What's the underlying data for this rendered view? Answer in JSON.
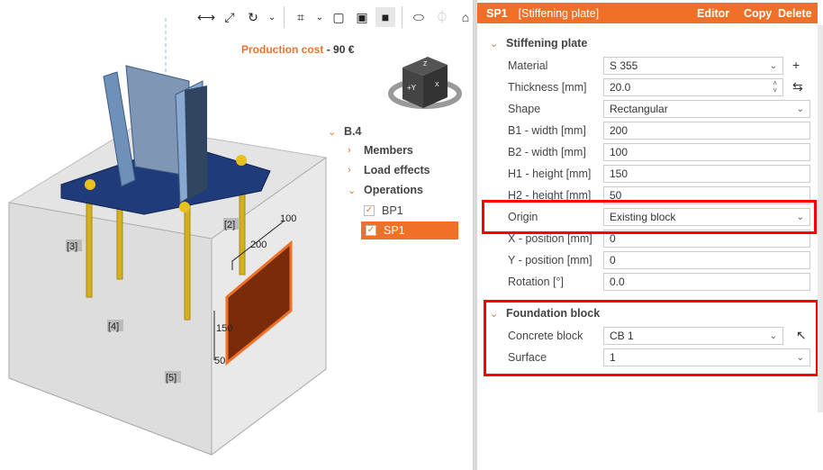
{
  "toolbar": {
    "items": [
      {
        "icon": "ruler-icon"
      },
      {
        "icon": "fit-icon"
      },
      {
        "icon": "rotate-icon"
      },
      {
        "icon": "chevron-down-icon"
      },
      {
        "icon": "crop-icon"
      },
      {
        "icon": "chevron-down-icon"
      },
      {
        "icon": "wireframe-icon"
      },
      {
        "icon": "transparent-icon"
      },
      {
        "icon": "solid-icon",
        "active": true
      },
      {
        "icon": "section-icon"
      },
      {
        "icon": "mirror-icon",
        "disabled": true
      },
      {
        "icon": "home-icon"
      }
    ]
  },
  "cost": {
    "label": "Production cost",
    "sep": "-",
    "value": "90 €"
  },
  "scene": {
    "labels": [
      "[2]",
      "[3]",
      "[4]",
      "[5]"
    ],
    "dims": [
      "100",
      "200",
      "150",
      "50"
    ],
    "cube": {
      "front": "+Y",
      "top": "Z",
      "right": "X"
    }
  },
  "tree": {
    "root": "B.4",
    "items": [
      "Members",
      "Load effects",
      "Operations"
    ],
    "operations": [
      {
        "label": "BP1",
        "checked": true
      },
      {
        "label": "SP1",
        "checked": true,
        "selected": true
      }
    ]
  },
  "panel": {
    "id": "SP1",
    "type": "[Stiffening plate]",
    "editor": "Editor",
    "copy": "Copy",
    "delete": "Delete",
    "section1": "Stiffening plate",
    "rows": [
      {
        "label": "Material",
        "value": "S 355",
        "kind": "select"
      },
      {
        "label": "Thickness [mm]",
        "value": "20.0",
        "kind": "spin"
      },
      {
        "label": "Shape",
        "value": "Rectangular",
        "kind": "select"
      },
      {
        "label": "B1 - width [mm]",
        "value": "200"
      },
      {
        "label": "B2 - width [mm]",
        "value": "100"
      },
      {
        "label": "H1 - height [mm]",
        "value": "150"
      },
      {
        "label": "H2 - height [mm]",
        "value": "50"
      },
      {
        "label": "Origin",
        "value": "Existing block",
        "kind": "select"
      },
      {
        "label": "X - position [mm]",
        "value": "0"
      },
      {
        "label": "Y - position [mm]",
        "value": "0"
      },
      {
        "label": "Rotation [°]",
        "value": "0.0"
      }
    ],
    "section2": "Foundation block",
    "rows2": [
      {
        "label": "Concrete block",
        "value": "CB 1",
        "kind": "select"
      },
      {
        "label": "Surface",
        "value": "1",
        "kind": "select"
      }
    ]
  },
  "colors": {
    "accent": "#f07028",
    "highlight": "#ff0000",
    "plate": "#1f3b7a",
    "stiffener": "#7a2c0a"
  }
}
